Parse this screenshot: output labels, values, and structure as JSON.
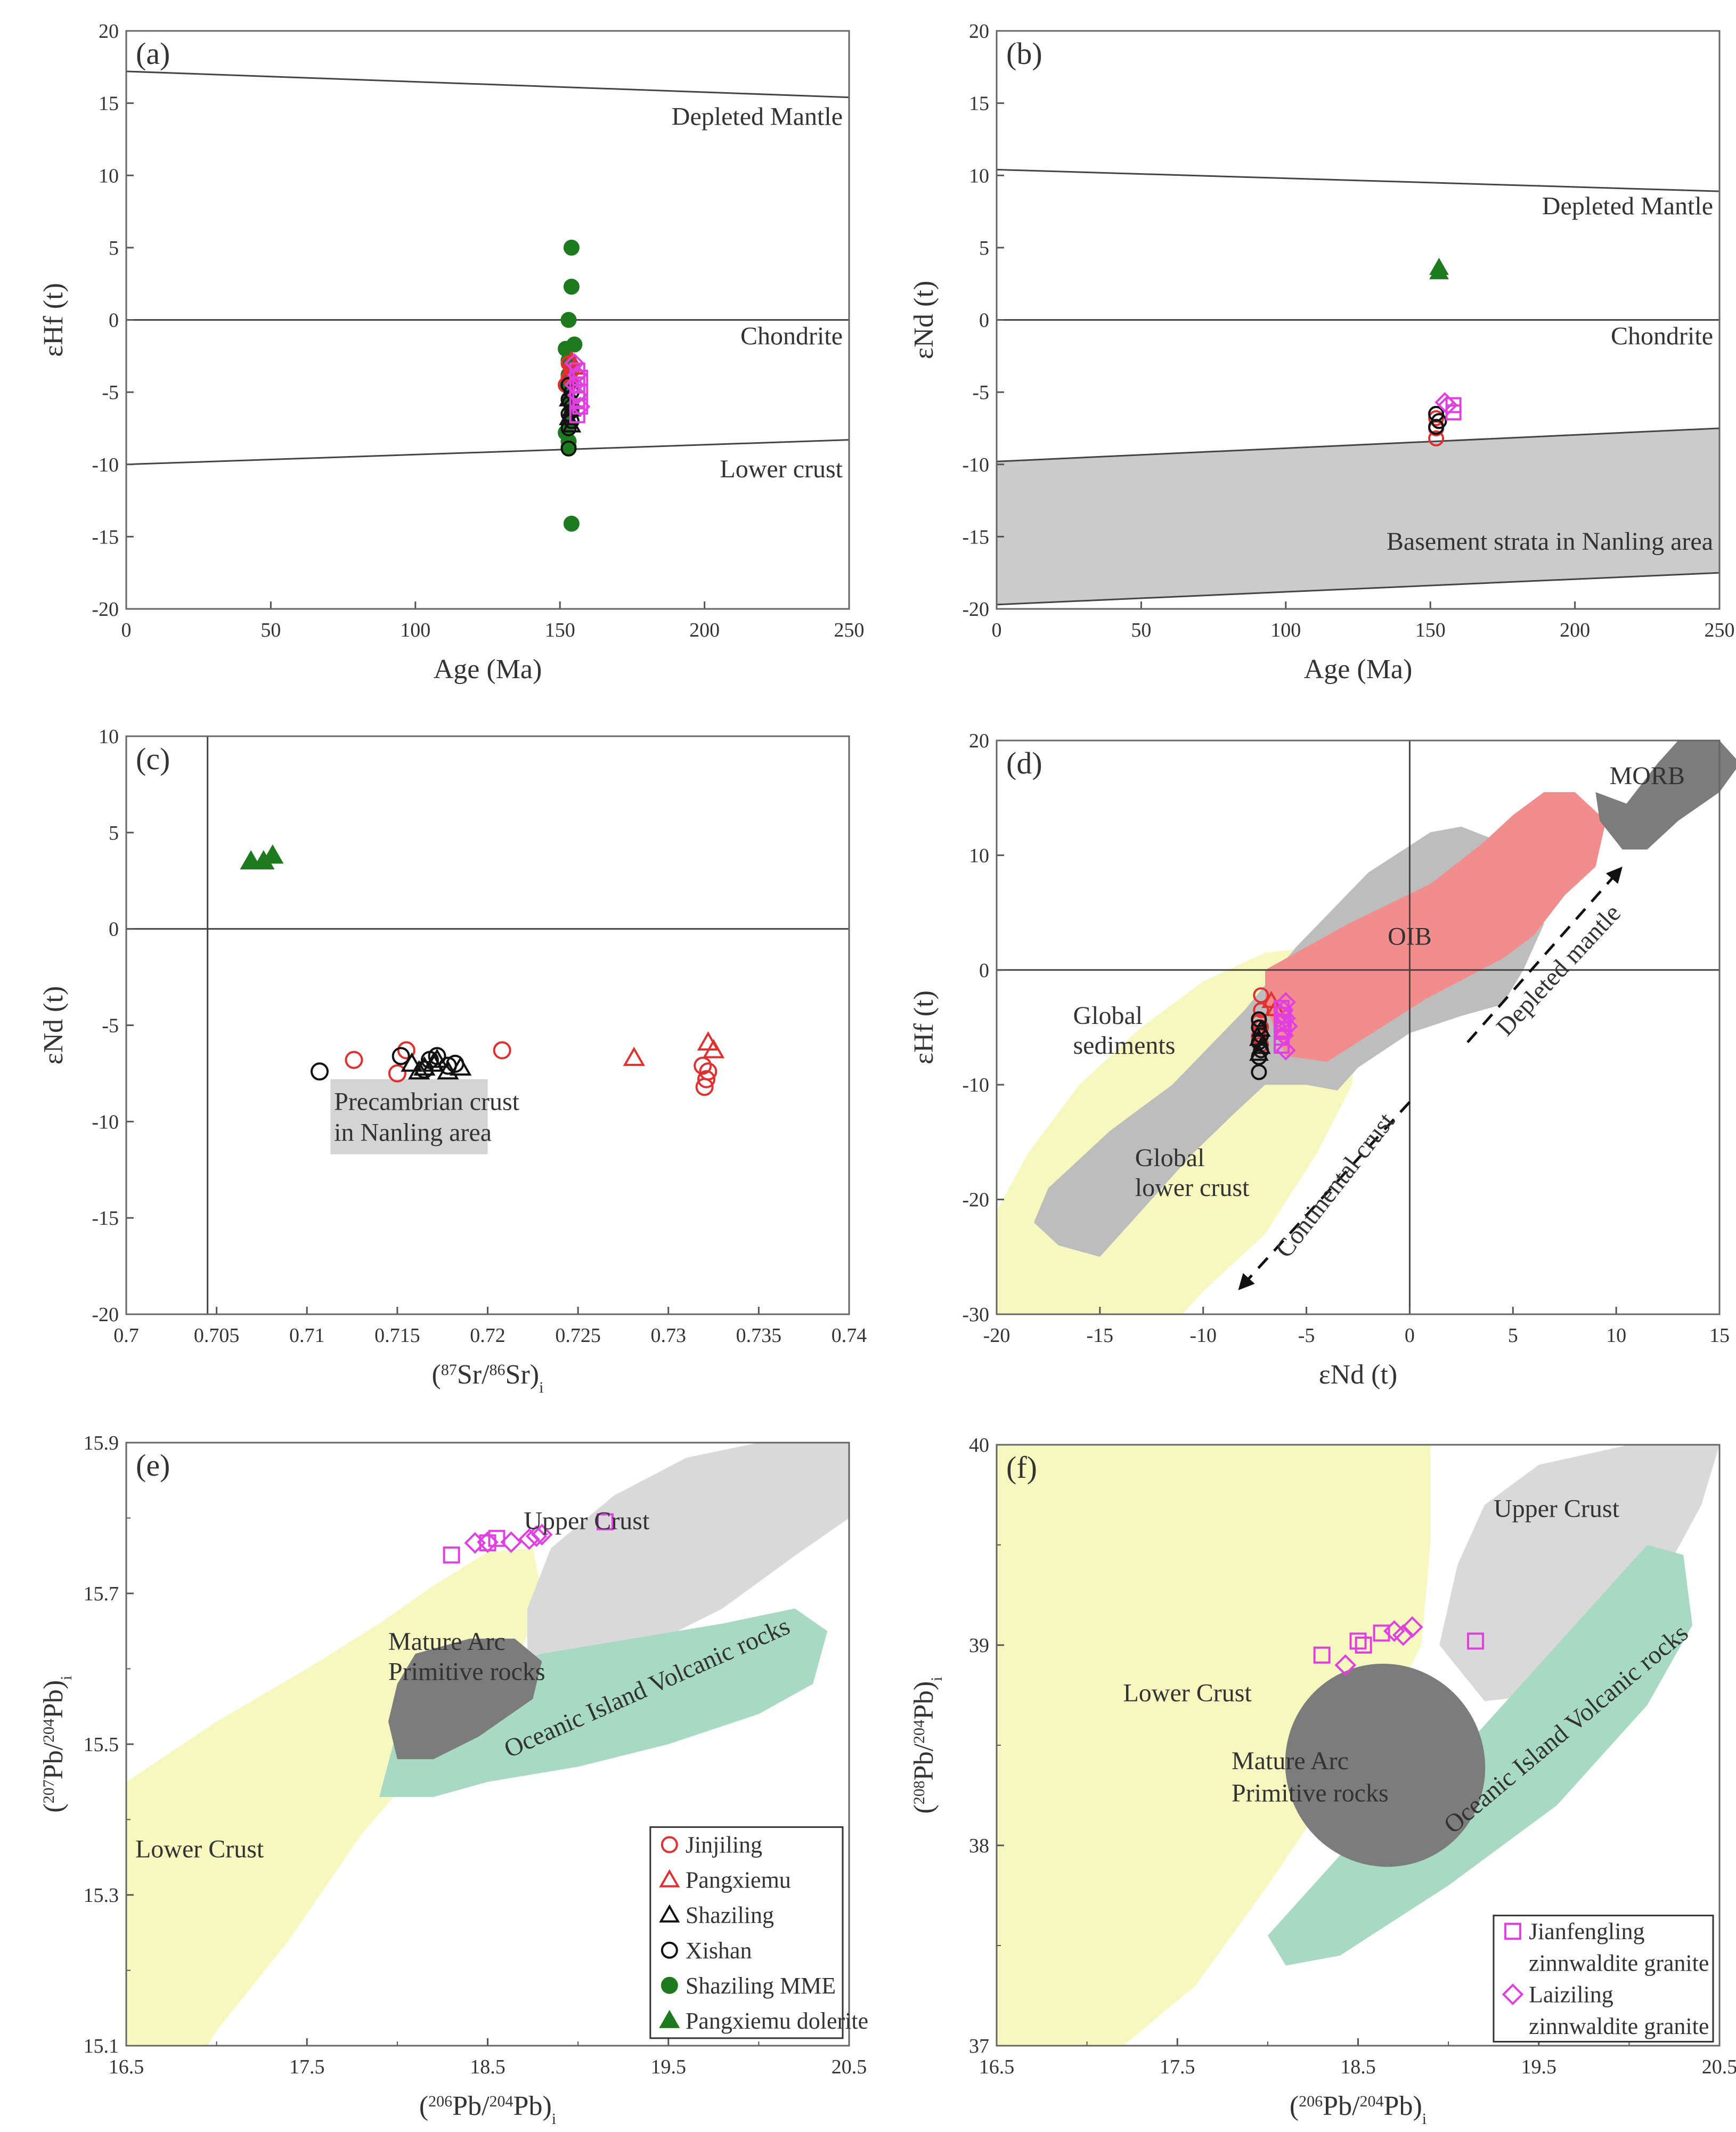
{
  "chart_data": [
    {
      "id": "a",
      "type": "scatter",
      "panel_label": "(a)",
      "xlabel": "Age (Ma)",
      "ylabel": "εHf (t)",
      "xlim": [
        0,
        250
      ],
      "ylim": [
        -20,
        20
      ],
      "xticks": [
        0,
        50,
        100,
        150,
        200,
        250
      ],
      "yticks": [
        -20,
        -15,
        -10,
        -5,
        0,
        5,
        10,
        15,
        20
      ],
      "reference_lines": [
        {
          "name": "Depleted Mantle",
          "x": [
            0,
            250
          ],
          "y": [
            17.2,
            15.4
          ]
        },
        {
          "name": "Chondrite",
          "x": [
            0,
            250
          ],
          "y": [
            0,
            0
          ]
        },
        {
          "name": "Lower crust",
          "x": [
            0,
            250
          ],
          "y": [
            -10,
            -8.3
          ]
        }
      ],
      "series": [
        {
          "name": "Shaziling MME",
          "x": [
            154,
            154,
            153,
            155,
            152,
            153,
            154,
            153,
            152,
            153,
            154,
            153,
            152,
            153,
            153,
            154
          ],
          "y": [
            5,
            2.3,
            0,
            -1.7,
            -2,
            -2.8,
            -3.2,
            -3.8,
            -4.5,
            -5.5,
            -6.3,
            -7.2,
            -7.8,
            -8.4,
            -8.8,
            -14.1
          ]
        },
        {
          "name": "Jinjiling",
          "x": [
            153,
            154,
            153,
            152,
            154,
            153
          ],
          "y": [
            -3,
            -3.5,
            -4,
            -4.5,
            -5,
            -5.5
          ]
        },
        {
          "name": "Pangxiemu",
          "x": [
            154,
            155,
            153
          ],
          "y": [
            -2.8,
            -3.3,
            -3.8
          ]
        },
        {
          "name": "Xishan",
          "x": [
            153,
            154,
            153,
            154,
            153,
            154,
            153,
            153
          ],
          "y": [
            -4.5,
            -5,
            -5.5,
            -6,
            -6.5,
            -7,
            -7.5,
            -8.9
          ]
        },
        {
          "name": "Shaziling",
          "x": [
            153,
            154,
            153,
            154
          ],
          "y": [
            -5.5,
            -6.2,
            -6.8,
            -7.3
          ]
        },
        {
          "name": "Laiziling zinnwaldite granite",
          "x": [
            155,
            156,
            155,
            156,
            157
          ],
          "y": [
            -3,
            -3.8,
            -4.5,
            -5.2,
            -6
          ]
        },
        {
          "name": "Jianfengling zinnwaldite granite",
          "x": [
            156,
            157,
            156,
            157,
            156,
            157,
            156
          ],
          "y": [
            -3.5,
            -4,
            -4.5,
            -5,
            -5.5,
            -6,
            -6.6
          ]
        }
      ],
      "annotations": [
        "Depleted Mantle",
        "Chondrite",
        "Lower crust"
      ]
    },
    {
      "id": "b",
      "type": "scatter",
      "panel_label": "(b)",
      "xlabel": "Age (Ma)",
      "ylabel": "εNd (t)",
      "xlim": [
        0,
        250
      ],
      "ylim": [
        -20,
        20
      ],
      "xticks": [
        0,
        50,
        100,
        150,
        200,
        250
      ],
      "yticks": [
        -20,
        -15,
        -10,
        -5,
        0,
        5,
        10,
        15,
        20
      ],
      "reference_lines": [
        {
          "name": "Depleted Mantle",
          "x": [
            0,
            250
          ],
          "y": [
            10.4,
            8.9
          ]
        },
        {
          "name": "Chondrite",
          "x": [
            0,
            250
          ],
          "y": [
            0,
            0
          ]
        }
      ],
      "regions": [
        {
          "name": "Basement strata in Nanling area",
          "x": [
            0,
            250,
            250,
            0
          ],
          "y": [
            -9.8,
            -7.5,
            -17.5,
            -19.7
          ]
        }
      ],
      "series": [
        {
          "name": "Pangxiemu dolerite",
          "x": [
            153,
            153
          ],
          "y": [
            3.3,
            3.6
          ]
        },
        {
          "name": "Jinjiling",
          "x": [
            152,
            152,
            152
          ],
          "y": [
            -6.8,
            -7.5,
            -8.2
          ]
        },
        {
          "name": "Xishan",
          "x": [
            152,
            153,
            152
          ],
          "y": [
            -6.5,
            -7,
            -7.4
          ]
        },
        {
          "name": "Laiziling zinnwaldite granite",
          "x": [
            155,
            156
          ],
          "y": [
            -5.7,
            -5.9
          ]
        },
        {
          "name": "Jianfengling zinnwaldite granite",
          "x": [
            158,
            158
          ],
          "y": [
            -5.9,
            -6.4
          ]
        }
      ],
      "annotations": [
        "Depleted Mantle",
        "Chondrite",
        "Basement strata in Nanling area"
      ]
    },
    {
      "id": "c",
      "type": "scatter",
      "panel_label": "(c)",
      "xlabel": "(87Sr/86Sr)i",
      "ylabel": "εNd (t)",
      "xlim": [
        0.7,
        0.74
      ],
      "ylim": [
        -20,
        10
      ],
      "xticks": [
        0.7,
        0.705,
        0.71,
        0.715,
        0.72,
        0.725,
        0.73,
        0.735,
        0.74
      ],
      "xtick_labels": [
        "0.7",
        "0.705",
        "0.71",
        "0.715",
        "0.72",
        "0.725",
        "0.73",
        "0.735",
        "0.74"
      ],
      "yticks": [
        -20,
        -15,
        -10,
        -5,
        0,
        5,
        10
      ],
      "reference_lines": [
        {
          "name": "Bulk Earth Sr",
          "x": [
            0.7045,
            0.7045
          ],
          "y": [
            -20,
            10
          ]
        },
        {
          "name": "Chondrite",
          "x": [
            0.7,
            0.74
          ],
          "y": [
            0,
            0
          ]
        }
      ],
      "regions": [
        {
          "name": "Precambrian crust in Nanling area",
          "x": [
            0.7113,
            0.72,
            0.72,
            0.7113
          ],
          "y": [
            -7.8,
            -7.8,
            -11.7,
            -11.7
          ]
        }
      ],
      "series": [
        {
          "name": "Pangxiemu dolerite",
          "x": [
            0.7069,
            0.7076,
            0.7081
          ],
          "y": [
            3.5,
            3.5,
            3.8
          ]
        },
        {
          "name": "Jinjiling",
          "x": [
            0.7126,
            0.715,
            0.7155,
            0.7208,
            0.7319,
            0.7322,
            0.7321,
            0.732
          ],
          "y": [
            -6.8,
            -7.5,
            -6.3,
            -6.3,
            -7.1,
            -7.4,
            -7.8,
            -8.2
          ]
        },
        {
          "name": "Pangxiemu",
          "x": [
            0.7281,
            0.7322,
            0.7325
          ],
          "y": [
            -6.7,
            -5.9,
            -6.3
          ]
        },
        {
          "name": "Xishan",
          "x": [
            0.7107,
            0.7152,
            0.7168,
            0.7172,
            0.7178,
            0.7165,
            0.7182
          ],
          "y": [
            -7.4,
            -6.6,
            -6.8,
            -6.6,
            -7.1,
            -7.3,
            -7.0
          ]
        },
        {
          "name": "Shaziling",
          "x": [
            0.7158,
            0.7165,
            0.7172,
            0.7178,
            0.7185,
            0.7162,
            0.717
          ],
          "y": [
            -7.0,
            -7.2,
            -6.8,
            -7.4,
            -7.2,
            -7.4,
            -7.0
          ]
        }
      ],
      "annotations": [
        "Precambrian crust",
        "in Nanling area"
      ]
    },
    {
      "id": "d",
      "type": "scatter",
      "panel_label": "(d)",
      "xlabel": "εNd (t)",
      "ylabel": "εHf (t)",
      "xlim": [
        -20,
        15
      ],
      "ylim": [
        -30,
        20
      ],
      "xticks": [
        -20,
        -15,
        -10,
        -5,
        0,
        5,
        10,
        15
      ],
      "yticks": [
        -30,
        -20,
        -10,
        0,
        10,
        20
      ],
      "reference_lines": [
        {
          "name": "Chondrite Hf",
          "x": [
            -20,
            15
          ],
          "y": [
            0,
            0
          ]
        },
        {
          "name": "Chondrite Nd",
          "x": [
            0,
            0
          ],
          "y": [
            -30,
            20
          ]
        }
      ],
      "regions": [
        {
          "name": "Global sediments"
        },
        {
          "name": "Global lower crust"
        },
        {
          "name": "OIB"
        },
        {
          "name": "MORB"
        }
      ],
      "arrows": [
        {
          "label": "Depleted mantle",
          "from": [
            2.8,
            -6.3
          ],
          "to": [
            10.2,
            8.8
          ]
        },
        {
          "label": "Continental crust",
          "from": [
            0,
            -11.5
          ],
          "to": [
            -8.2,
            -27.7
          ]
        }
      ],
      "series": [
        {
          "name": "Jinjiling",
          "x": [
            -7.2,
            -7.2,
            -7.3,
            -7.2,
            -7.3,
            -7.2
          ],
          "y": [
            -2.2,
            -3.5,
            -4.5,
            -5,
            -5.8,
            -6.5
          ]
        },
        {
          "name": "Pangxiemu",
          "x": [
            -6.7,
            -6.5
          ],
          "y": [
            -2.7,
            -3.4
          ]
        },
        {
          "name": "Xishan",
          "x": [
            -7.3,
            -7.3,
            -7.2,
            -7.3,
            -7.2,
            -7.3,
            -7.3
          ],
          "y": [
            -4.3,
            -5,
            -5.7,
            -6.3,
            -7,
            -7.6,
            -8.9
          ]
        },
        {
          "name": "Shaziling",
          "x": [
            -7.2,
            -7.3,
            -7.2,
            -7.3
          ],
          "y": [
            -5.2,
            -6,
            -6.7,
            -7.3
          ]
        },
        {
          "name": "Laiziling zinnwaldite granite",
          "x": [
            -6.0,
            -6.1,
            -6.0,
            -5.9,
            -6.1,
            -6.0
          ],
          "y": [
            -2.8,
            -3.5,
            -4.2,
            -4.9,
            -5.7,
            -7.0
          ]
        },
        {
          "name": "Jianfengling zinnwaldite granite",
          "x": [
            -6.2,
            -6.1,
            -6.2,
            -6.1,
            -6.2,
            -6.2
          ],
          "y": [
            -3.3,
            -3.9,
            -4.6,
            -5.2,
            -5.9,
            -6.6
          ]
        }
      ],
      "annotations": [
        "MORB",
        "OIB",
        "Global",
        "sediments",
        "Global",
        "lower crust",
        "Depleted mantle",
        "Continental crust"
      ]
    },
    {
      "id": "e",
      "type": "scatter",
      "panel_label": "(e)",
      "xlabel": "(206Pb/204Pb)i",
      "ylabel": "(207Pb/204Pb)i",
      "xlim": [
        16.5,
        20.5
      ],
      "ylim": [
        15.1,
        15.9
      ],
      "xticks": [
        16.5,
        17.5,
        18.5,
        19.5,
        20.5
      ],
      "yticks": [
        15.1,
        15.3,
        15.5,
        15.7,
        15.9
      ],
      "regions": [
        {
          "name": "Lower Crust"
        },
        {
          "name": "Upper Crust"
        },
        {
          "name": "Mature Arc Primitive rocks"
        },
        {
          "name": "Oceanic Island Volcanic rocks"
        }
      ],
      "series": [
        {
          "name": "Jianfengling zinnwaldite granite",
          "x": [
            18.3,
            18.5,
            18.55,
            19.15
          ],
          "y": [
            15.751,
            15.767,
            15.773,
            15.795
          ]
        },
        {
          "name": "Laiziling zinnwaldite granite",
          "x": [
            18.43,
            18.5,
            18.63,
            18.73,
            18.77,
            18.8
          ],
          "y": [
            15.767,
            15.768,
            15.768,
            15.772,
            15.776,
            15.778
          ]
        }
      ],
      "annotations": [
        "Upper Crust",
        "Mature Arc",
        "Primitive rocks",
        "Oceanic Island Volcanic rocks",
        "Lower Crust"
      ],
      "legend": [
        "Jinjiling",
        "Pangxiemu",
        "Shaziling",
        "Xishan",
        "Shaziling MME",
        "Pangxiemu dolerite"
      ]
    },
    {
      "id": "f",
      "type": "scatter",
      "panel_label": "(f)",
      "xlabel": "(206Pb/204Pb)i",
      "ylabel": "(208Pb/204Pb)i",
      "xlim": [
        16.5,
        20.5
      ],
      "ylim": [
        37,
        40
      ],
      "xticks": [
        16.5,
        17.5,
        18.5,
        19.5,
        20.5
      ],
      "yticks": [
        37,
        38,
        39,
        40
      ],
      "regions": [
        {
          "name": "Lower Crust"
        },
        {
          "name": "Upper Crust"
        },
        {
          "name": "Mature Arc Primitive rocks"
        },
        {
          "name": "Oceanic Island Volcanic rocks"
        }
      ],
      "series": [
        {
          "name": "Jianfengling zinnwaldite granite",
          "x": [
            18.3,
            18.5,
            18.53,
            18.63,
            19.15
          ],
          "y": [
            38.95,
            39.02,
            39.0,
            39.06,
            39.02
          ]
        },
        {
          "name": "Laiziling zinnwaldite granite",
          "x": [
            18.43,
            18.7,
            18.75,
            18.8
          ],
          "y": [
            38.9,
            39.07,
            39.05,
            39.09
          ]
        }
      ],
      "annotations": [
        "Upper Crust",
        "Lower Crust",
        "Mature Arc",
        "Primitive rocks",
        "Oceanic Island Volcanic rocks"
      ],
      "legend": [
        "Jianfengling",
        "zinnwaldite granite",
        "Laiziling",
        "zinnwaldite granite"
      ]
    }
  ]
}
